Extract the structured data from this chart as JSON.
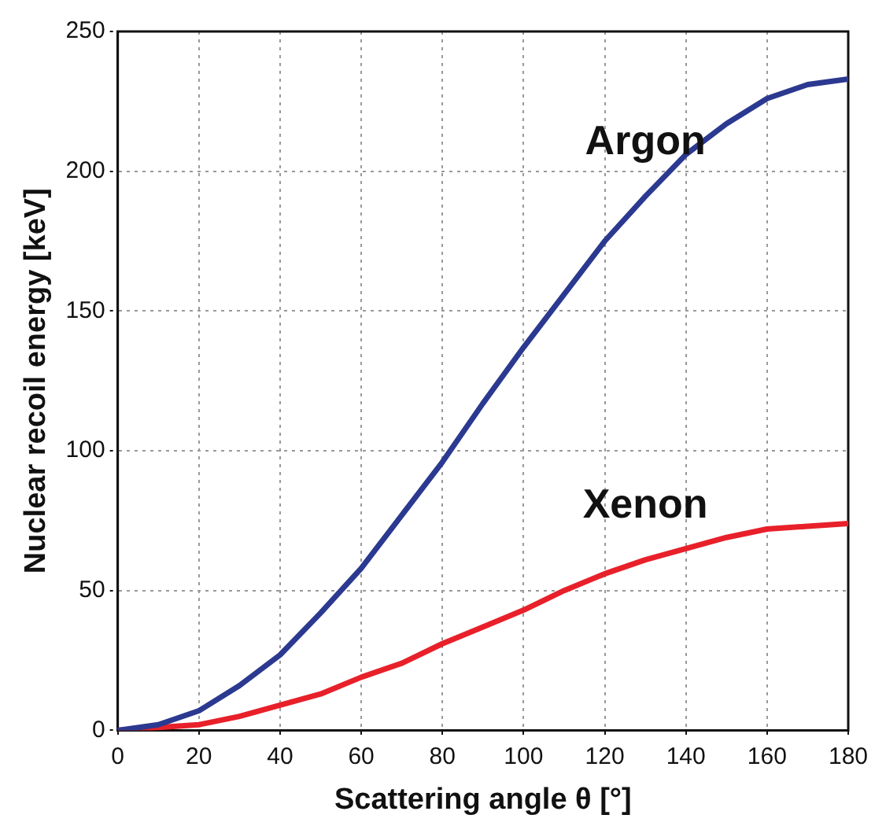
{
  "chart_data": {
    "type": "line",
    "xlabel": "Scattering angle θ [°]",
    "ylabel": "Nuclear recoil energy [keV]",
    "x": [
      0,
      10,
      20,
      30,
      40,
      50,
      60,
      70,
      80,
      90,
      100,
      110,
      120,
      130,
      140,
      150,
      160,
      170,
      180
    ],
    "series": [
      {
        "name": "Argon",
        "color": "#2b3990",
        "values": [
          0,
          2,
          7,
          16,
          27,
          42,
          58,
          77,
          96,
          117,
          137,
          156,
          175,
          191,
          206,
          217,
          226,
          231,
          233
        ]
      },
      {
        "name": "Xenon",
        "color": "#e8202a",
        "values": [
          0,
          1,
          2,
          5,
          9,
          13,
          19,
          24,
          31,
          37,
          43,
          50,
          56,
          61,
          65,
          69,
          72,
          73,
          74
        ]
      }
    ],
    "xlim": [
      0,
      180
    ],
    "xticks": [
      0,
      20,
      40,
      60,
      80,
      100,
      120,
      140,
      160,
      180
    ],
    "ylim": [
      0,
      250
    ],
    "yticks": [
      0,
      50,
      100,
      150,
      200,
      250
    ],
    "grid": true,
    "marker": "none",
    "line_style": "solid"
  }
}
